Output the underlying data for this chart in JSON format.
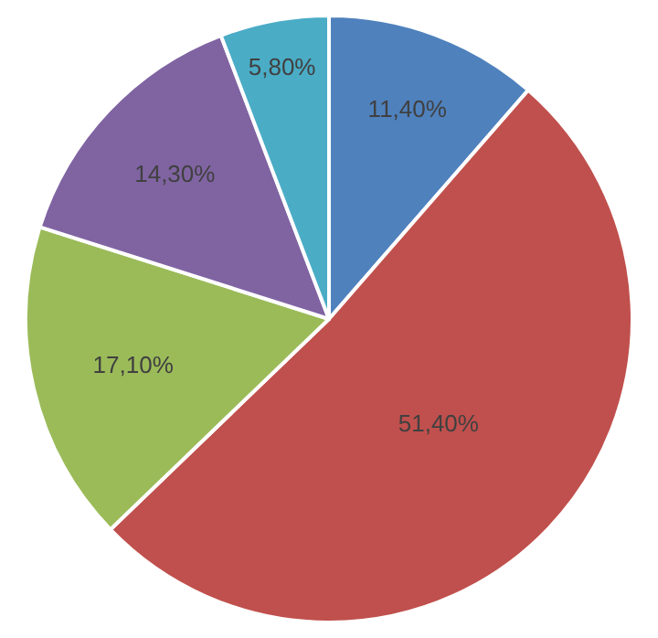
{
  "chart_data": {
    "type": "pie",
    "categories": [
      null,
      null,
      null,
      null,
      null
    ],
    "values": [
      11.4,
      51.4,
      17.1,
      14.3,
      5.8
    ],
    "value_labels": [
      "11,40%",
      "51,40%",
      "17,10%",
      "14,30%",
      "5,80%"
    ],
    "colors": [
      "#4f81bd",
      "#c0504d",
      "#9bbb59",
      "#8064a2",
      "#4bacc6"
    ],
    "legend": false
  }
}
